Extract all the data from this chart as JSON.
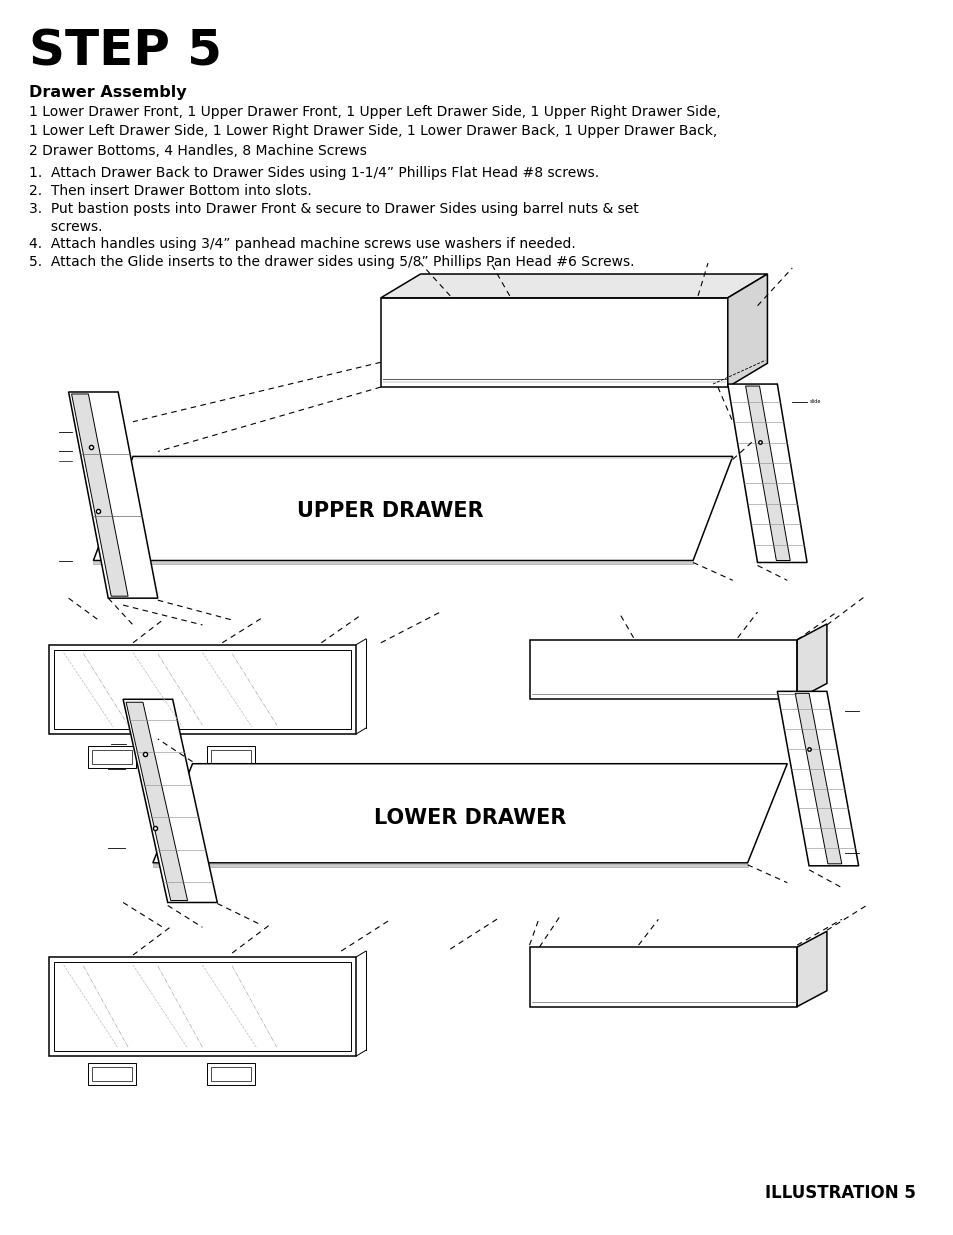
{
  "title": "STEP 5",
  "subtitle": "Drawer Assembly",
  "parts_list": "1 Lower Drawer Front, 1 Upper Drawer Front, 1 Upper Left Drawer Side, 1 Upper Right Drawer Side,\n1 Lower Left Drawer Side, 1 Lower Right Drawer Side, 1 Lower Drawer Back, 1 Upper Drawer Back,\n2 Drawer Bottoms, 4 Handles, 8 Machine Screws",
  "instructions": [
    "1.  Attach Drawer Back to Drawer Sides using 1-1/4” Phillips Flat Head #8 screws.",
    "2.  Then insert Drawer Bottom into slots.",
    "3.  Put bastion posts into Drawer Front & secure to Drawer Sides using barrel nuts & set\n     screws.",
    "4.  Attach handles using 3/4” panhead machine screws use washers if needed.",
    "5.  Attach the Glide inserts to the drawer sides using 5/8” Phillips Pan Head #6 Screws."
  ],
  "upper_label": "UPPER DRAWER",
  "lower_label": "LOWER DRAWER",
  "illustration_label": "ILLUSTRATION 5",
  "bg_color": "#ffffff",
  "text_color": "#000000"
}
